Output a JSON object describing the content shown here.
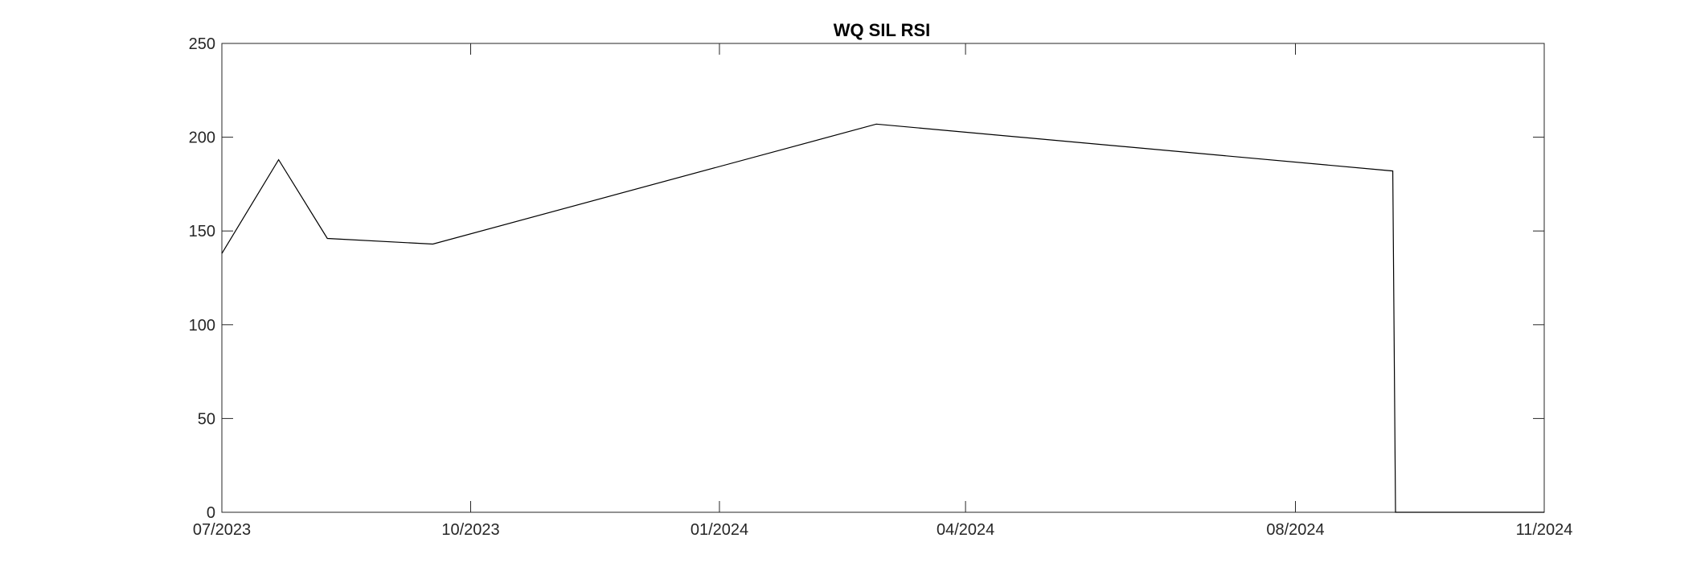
{
  "chart_data": {
    "type": "line",
    "title": "WQ SIL RSI",
    "xlabel": "",
    "ylabel": "",
    "x_ticks": [
      "07/2023",
      "10/2023",
      "01/2024",
      "04/2024",
      "08/2024",
      "11/2024"
    ],
    "y_ticks": [
      "0",
      "50",
      "100",
      "150",
      "200",
      "250"
    ],
    "xlim": [
      "2023-07-01",
      "2024-11-01"
    ],
    "ylim": [
      0,
      250
    ],
    "grid": false,
    "colors": {
      "line": "#000000",
      "axes": "#262626",
      "background": "#ffffff"
    },
    "series": [
      {
        "x": [
          "2023-07-01",
          "2023-07-22",
          "2023-08-09",
          "2023-09-17",
          "2024-02-28",
          "2024-09-06",
          "2024-09-07",
          "2024-11-01"
        ],
        "y": [
          138,
          188,
          146,
          143,
          207,
          182,
          0,
          0
        ]
      }
    ]
  }
}
